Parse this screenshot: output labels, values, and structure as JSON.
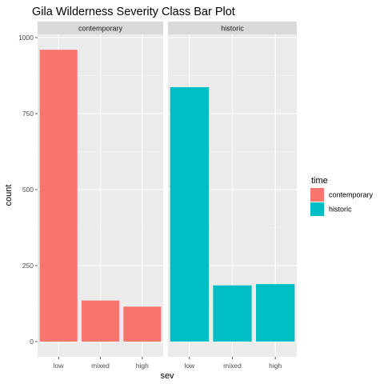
{
  "chart_data": {
    "type": "bar",
    "title": "Gila Wilderness Severity Class Bar Plot",
    "xlabel": "sev",
    "ylabel": "count",
    "categories": [
      "low",
      "mixed",
      "high"
    ],
    "ylim": [
      0,
      1050
    ],
    "yticks": [
      0,
      250,
      500,
      750,
      1000
    ],
    "grid": true,
    "legend": {
      "title": "time",
      "placement": "right",
      "entries": [
        {
          "label": "contemporary",
          "color": "#F8766D"
        },
        {
          "label": "historic",
          "color": "#00BFC4"
        }
      ]
    },
    "facets": [
      {
        "label": "contemporary",
        "color": "#F8766D",
        "values": [
          960,
          135,
          115
        ]
      },
      {
        "label": "historic",
        "color": "#00BFC4",
        "values": [
          837,
          185,
          189
        ]
      }
    ]
  }
}
